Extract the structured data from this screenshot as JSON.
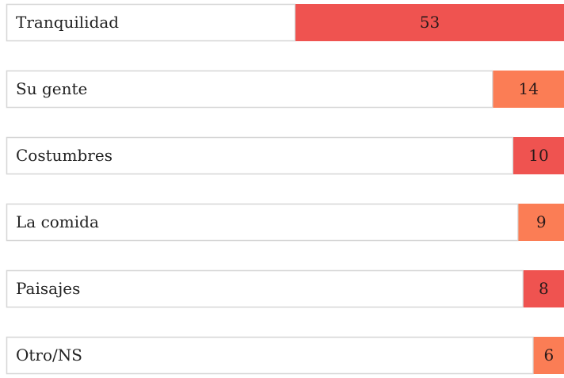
{
  "chart_data": {
    "type": "bar",
    "orientation": "horizontal",
    "categories": [
      "Tranquilidad",
      "Su gente",
      "Costumbres",
      "La comida",
      "Paisajes",
      "Otro/NS"
    ],
    "values": [
      53,
      14,
      10,
      9,
      8,
      6
    ],
    "colors": [
      "#ef5350",
      "#fb7d55",
      "#ef5350",
      "#fb7d55",
      "#ef5350",
      "#fb7d55"
    ]
  }
}
